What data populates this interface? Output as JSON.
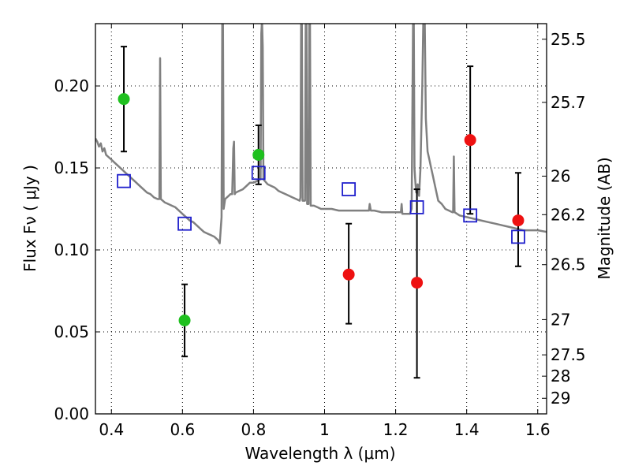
{
  "chart_data": {
    "type": "scatter",
    "title": "",
    "xlabel": "Wavelength  λ (μm)",
    "ylabel_left": "Flux  Fν  ( μJy )",
    "ylabel_right": "Magnitude (AB)",
    "xlim": [
      0.355,
      1.625
    ],
    "ylim": [
      0.0,
      0.238
    ],
    "grid": true,
    "x_ticks": [
      0.4,
      0.6,
      0.8,
      1.0,
      1.2,
      1.4,
      1.6
    ],
    "x_tick_labels": [
      "0.4",
      "0.6",
      "0.8",
      "1",
      "1.2",
      "1.4",
      "1.6"
    ],
    "y_ticks": [
      0.0,
      0.05,
      0.1,
      0.15,
      0.2
    ],
    "y_tick_labels": [
      "0.00",
      "0.05",
      "0.10",
      "0.15",
      "0.20"
    ],
    "right_ticks": [
      {
        "flux": 0.2285,
        "label": "25.5"
      },
      {
        "flux": 0.19,
        "label": "25.7"
      },
      {
        "flux": 0.145,
        "label": "26"
      },
      {
        "flux": 0.1215,
        "label": "26.2"
      },
      {
        "flux": 0.091,
        "label": "26.5"
      },
      {
        "flux": 0.0575,
        "label": "27"
      },
      {
        "flux": 0.036,
        "label": "27.5"
      },
      {
        "flux": 0.023,
        "label": "28"
      },
      {
        "flux": 0.0095,
        "label": "29"
      }
    ],
    "colors": {
      "model": "#808080",
      "green": "#1fc01f",
      "red": "#ee1111",
      "blue": "#1f1fcc",
      "errorbar": "#000000"
    },
    "series": [
      {
        "kind": "model_spectrum",
        "color": "#808080",
        "points": [
          [
            0.355,
            0.168
          ],
          [
            0.36,
            0.166
          ],
          [
            0.365,
            0.163
          ],
          [
            0.37,
            0.165
          ],
          [
            0.375,
            0.16
          ],
          [
            0.38,
            0.162
          ],
          [
            0.385,
            0.158
          ],
          [
            0.39,
            0.157
          ],
          [
            0.4,
            0.155
          ],
          [
            0.41,
            0.153
          ],
          [
            0.42,
            0.151
          ],
          [
            0.43,
            0.149
          ],
          [
            0.44,
            0.147
          ],
          [
            0.45,
            0.145
          ],
          [
            0.46,
            0.143
          ],
          [
            0.47,
            0.141
          ],
          [
            0.48,
            0.139
          ],
          [
            0.49,
            0.137
          ],
          [
            0.5,
            0.135
          ],
          [
            0.51,
            0.134
          ],
          [
            0.52,
            0.132
          ],
          [
            0.53,
            0.131
          ],
          [
            0.535,
            0.131
          ],
          [
            0.537,
            0.217
          ],
          [
            0.539,
            0.131
          ],
          [
            0.55,
            0.129
          ],
          [
            0.56,
            0.128
          ],
          [
            0.57,
            0.127
          ],
          [
            0.58,
            0.126
          ],
          [
            0.59,
            0.124
          ],
          [
            0.6,
            0.122
          ],
          [
            0.61,
            0.12
          ],
          [
            0.62,
            0.118
          ],
          [
            0.63,
            0.117
          ],
          [
            0.64,
            0.115
          ],
          [
            0.65,
            0.113
          ],
          [
            0.66,
            0.111
          ],
          [
            0.67,
            0.11
          ],
          [
            0.68,
            0.109
          ],
          [
            0.69,
            0.108
          ],
          [
            0.7,
            0.106
          ],
          [
            0.705,
            0.104
          ],
          [
            0.71,
            0.12
          ],
          [
            0.712,
            0.24
          ],
          [
            0.714,
            0.24
          ],
          [
            0.716,
            0.125
          ],
          [
            0.72,
            0.131
          ],
          [
            0.73,
            0.133
          ],
          [
            0.735,
            0.134
          ],
          [
            0.74,
            0.134
          ],
          [
            0.743,
            0.162
          ],
          [
            0.745,
            0.166
          ],
          [
            0.747,
            0.134
          ],
          [
            0.75,
            0.135
          ],
          [
            0.76,
            0.136
          ],
          [
            0.77,
            0.137
          ],
          [
            0.78,
            0.139
          ],
          [
            0.79,
            0.141
          ],
          [
            0.8,
            0.141
          ],
          [
            0.81,
            0.142
          ],
          [
            0.815,
            0.143
          ],
          [
            0.82,
            0.143
          ],
          [
            0.822,
            0.232
          ],
          [
            0.824,
            0.24
          ],
          [
            0.826,
            0.224
          ],
          [
            0.828,
            0.143
          ],
          [
            0.84,
            0.14
          ],
          [
            0.85,
            0.139
          ],
          [
            0.86,
            0.138
          ],
          [
            0.87,
            0.136
          ],
          [
            0.88,
            0.135
          ],
          [
            0.89,
            0.134
          ],
          [
            0.9,
            0.133
          ],
          [
            0.91,
            0.132
          ],
          [
            0.92,
            0.131
          ],
          [
            0.93,
            0.13
          ],
          [
            0.932,
            0.132
          ],
          [
            0.934,
            0.24
          ],
          [
            0.936,
            0.24
          ],
          [
            0.938,
            0.13
          ],
          [
            0.945,
            0.13
          ],
          [
            0.947,
            0.24
          ],
          [
            0.949,
            0.24
          ],
          [
            0.951,
            0.128
          ],
          [
            0.955,
            0.128
          ],
          [
            0.957,
            0.24
          ],
          [
            0.959,
            0.24
          ],
          [
            0.961,
            0.127
          ],
          [
            0.97,
            0.127
          ],
          [
            0.98,
            0.126
          ],
          [
            0.99,
            0.125
          ],
          [
            1.0,
            0.125
          ],
          [
            1.02,
            0.125
          ],
          [
            1.04,
            0.124
          ],
          [
            1.06,
            0.124
          ],
          [
            1.08,
            0.124
          ],
          [
            1.1,
            0.124
          ],
          [
            1.12,
            0.124
          ],
          [
            1.125,
            0.124
          ],
          [
            1.127,
            0.128
          ],
          [
            1.13,
            0.124
          ],
          [
            1.14,
            0.124
          ],
          [
            1.16,
            0.123
          ],
          [
            1.18,
            0.123
          ],
          [
            1.2,
            0.123
          ],
          [
            1.21,
            0.123
          ],
          [
            1.215,
            0.123
          ],
          [
            1.217,
            0.128
          ],
          [
            1.219,
            0.122
          ],
          [
            1.23,
            0.122
          ],
          [
            1.24,
            0.122
          ],
          [
            1.245,
            0.125
          ],
          [
            1.249,
            0.24
          ],
          [
            1.251,
            0.24
          ],
          [
            1.253,
            0.15
          ],
          [
            1.256,
            0.14
          ],
          [
            1.258,
            0.135
          ],
          [
            1.262,
            0.14
          ],
          [
            1.266,
            0.133
          ],
          [
            1.27,
            0.15
          ],
          [
            1.275,
            0.2
          ],
          [
            1.278,
            0.24
          ],
          [
            1.282,
            0.24
          ],
          [
            1.285,
            0.18
          ],
          [
            1.29,
            0.16
          ],
          [
            1.295,
            0.155
          ],
          [
            1.3,
            0.15
          ],
          [
            1.305,
            0.145
          ],
          [
            1.31,
            0.14
          ],
          [
            1.32,
            0.13
          ],
          [
            1.33,
            0.128
          ],
          [
            1.34,
            0.125
          ],
          [
            1.35,
            0.124
          ],
          [
            1.36,
            0.123
          ],
          [
            1.362,
            0.123
          ],
          [
            1.364,
            0.157
          ],
          [
            1.366,
            0.123
          ],
          [
            1.38,
            0.121
          ],
          [
            1.4,
            0.12
          ],
          [
            1.42,
            0.119
          ],
          [
            1.44,
            0.118
          ],
          [
            1.46,
            0.117
          ],
          [
            1.48,
            0.116
          ],
          [
            1.5,
            0.115
          ],
          [
            1.52,
            0.114
          ],
          [
            1.54,
            0.113
          ],
          [
            1.56,
            0.112
          ],
          [
            1.58,
            0.112
          ],
          [
            1.6,
            0.112
          ],
          [
            1.625,
            0.111
          ]
        ]
      },
      {
        "kind": "photometry_errorbars",
        "color": "#1fc01f",
        "points": [
          {
            "x": 0.435,
            "y": 0.192,
            "ylow": 0.16,
            "yhigh": 0.224
          },
          {
            "x": 0.606,
            "y": 0.057,
            "ylow": 0.035,
            "yhigh": 0.079
          },
          {
            "x": 0.814,
            "y": 0.158,
            "ylow": 0.14,
            "yhigh": 0.176
          }
        ]
      },
      {
        "kind": "photometry_errorbars",
        "color": "#ee1111",
        "points": [
          {
            "x": 1.068,
            "y": 0.085,
            "ylow": 0.055,
            "yhigh": 0.116
          },
          {
            "x": 1.26,
            "y": 0.08,
            "ylow": 0.022,
            "yhigh": 0.137
          },
          {
            "x": 1.41,
            "y": 0.167,
            "ylow": 0.122,
            "yhigh": 0.212
          },
          {
            "x": 1.545,
            "y": 0.118,
            "ylow": 0.09,
            "yhigh": 0.147
          }
        ]
      },
      {
        "kind": "model_photometry",
        "color": "#1f1fcc",
        "points": [
          {
            "x": 0.435,
            "y": 0.142
          },
          {
            "x": 0.606,
            "y": 0.116
          },
          {
            "x": 0.814,
            "y": 0.147
          },
          {
            "x": 1.068,
            "y": 0.137
          },
          {
            "x": 1.26,
            "y": 0.126
          },
          {
            "x": 1.41,
            "y": 0.121
          },
          {
            "x": 1.545,
            "y": 0.108
          }
        ]
      }
    ]
  }
}
